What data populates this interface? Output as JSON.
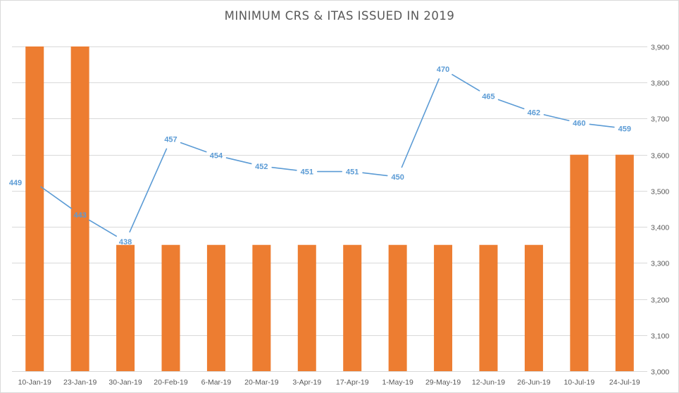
{
  "chart_data": {
    "type": "bar+line",
    "title": "MINIMUM CRS & ITAS ISSUED IN 2019",
    "categories": [
      "10-Jan-19",
      "23-Jan-19",
      "30-Jan-19",
      "20-Feb-19",
      "6-Mar-19",
      "20-Mar-19",
      "3-Apr-19",
      "17-Apr-19",
      "1-May-19",
      "29-May-19",
      "12-Jun-19",
      "26-Jun-19",
      "10-Jul-19",
      "24-Jul-19"
    ],
    "series": [
      {
        "kind": "bar",
        "axis": "right",
        "color": "#ED7D31",
        "values": [
          3900,
          3900,
          3350,
          3350,
          3350,
          3350,
          3350,
          3350,
          3350,
          3350,
          3350,
          3350,
          3600,
          3600
        ]
      },
      {
        "kind": "line",
        "axis": "secondary",
        "color": "#5B9BD5",
        "values": [
          449,
          443,
          438,
          457,
          454,
          452,
          451,
          451,
          450,
          470,
          465,
          462,
          460,
          459
        ],
        "labels": [
          "449",
          "443",
          "438",
          "457",
          "454",
          "452",
          "451",
          "451",
          "450",
          "470",
          "465",
          "462",
          "460",
          "459"
        ]
      }
    ],
    "y_axis_right": {
      "ylim": [
        3000,
        3900
      ],
      "ticks": [
        3000,
        3100,
        3200,
        3300,
        3400,
        3500,
        3600,
        3700,
        3800,
        3900
      ],
      "tick_labels": [
        "3,000",
        "3,100",
        "3,200",
        "3,300",
        "3,400",
        "3,500",
        "3,600",
        "3,700",
        "3,800",
        "3,900"
      ]
    },
    "grid": true,
    "legend": "none"
  }
}
